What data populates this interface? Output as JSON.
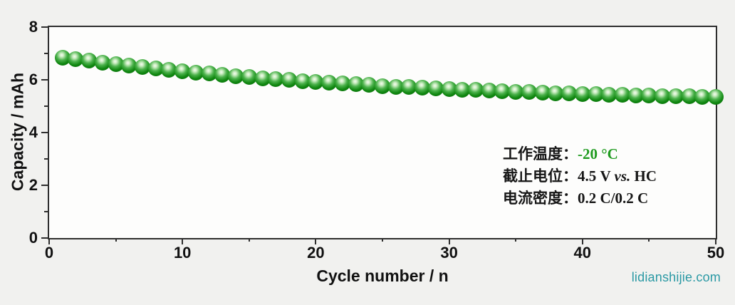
{
  "chart_data": {
    "type": "scatter",
    "xlabel": "Cycle number / n",
    "ylabel": "Capacity / mAh",
    "xlim": [
      0,
      50
    ],
    "ylim": [
      0,
      8
    ],
    "x_major_ticks": [
      0,
      10,
      20,
      30,
      40,
      50
    ],
    "x_minor_ticks": [
      5,
      15,
      25,
      35,
      45
    ],
    "y_major_ticks": [
      0,
      2,
      4,
      6,
      8
    ],
    "y_minor_ticks": [
      1,
      3,
      5,
      7
    ],
    "grid": "off",
    "legend": "none",
    "series": [
      {
        "name": "capacity",
        "marker": "sphere",
        "marker_color": "#108710",
        "x": [
          1,
          2,
          3,
          4,
          5,
          6,
          7,
          8,
          9,
          10,
          11,
          12,
          13,
          14,
          15,
          16,
          17,
          18,
          19,
          20,
          21,
          22,
          23,
          24,
          25,
          26,
          27,
          28,
          29,
          30,
          31,
          32,
          33,
          34,
          35,
          36,
          37,
          38,
          39,
          40,
          41,
          42,
          43,
          44,
          45,
          46,
          47,
          48,
          49,
          50
        ],
        "y": [
          6.85,
          6.78,
          6.72,
          6.65,
          6.59,
          6.53,
          6.48,
          6.42,
          6.37,
          6.32,
          6.27,
          6.23,
          6.18,
          6.14,
          6.1,
          6.06,
          6.02,
          5.99,
          5.95,
          5.92,
          5.89,
          5.86,
          5.83,
          5.8,
          5.77,
          5.74,
          5.72,
          5.69,
          5.67,
          5.65,
          5.63,
          5.61,
          5.59,
          5.57,
          5.55,
          5.53,
          5.51,
          5.5,
          5.48,
          5.47,
          5.45,
          5.44,
          5.43,
          5.41,
          5.4,
          5.39,
          5.38,
          5.37,
          5.36,
          5.35
        ]
      }
    ]
  },
  "annotation": {
    "lines": [
      {
        "label": "工作温度：",
        "value": "-20 °C"
      },
      {
        "label": "截止电位：",
        "value_pre": "4.5 V ",
        "value_italic": "vs.",
        "value_post": " HC"
      },
      {
        "label": "电流密度：",
        "value": "0.2 C/0.2 C"
      }
    ],
    "highlight_color": "#1f9b1f"
  },
  "watermark": "lidianshijie.com",
  "colors": {
    "page_bg": "#f1f1ef",
    "plot_bg": "#fdfdfc",
    "axis": "#2e2e2e",
    "marker": "#108710",
    "annotation_highlight": "#1f9b1f",
    "watermark": "#2a99a4"
  }
}
